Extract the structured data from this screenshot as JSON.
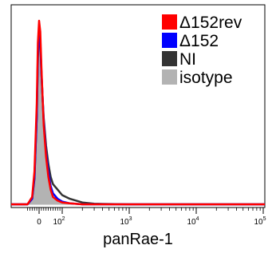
{
  "chart_data": {
    "type": "area",
    "xlabel": "panRae-1",
    "ylabel": "",
    "x_scale": "biexponential",
    "xlim": [
      -60,
      300000
    ],
    "ylim": [
      0,
      100
    ],
    "x_ticks": [
      {
        "value": 0,
        "base": "0",
        "exp": ""
      },
      {
        "value": 100,
        "base": "10",
        "exp": "2"
      },
      {
        "value": 1000,
        "base": "10",
        "exp": "3"
      },
      {
        "value": 10000,
        "base": "10",
        "exp": "4"
      },
      {
        "value": 100000,
        "base": "10",
        "exp": "5"
      }
    ],
    "legend": {
      "position": "top-right",
      "entries": [
        {
          "label": "Δ152rev",
          "color": "#ff0000"
        },
        {
          "label": "Δ152",
          "color": "#0000ff"
        },
        {
          "label": "NI",
          "color": "#333333"
        },
        {
          "label": "isotype",
          "color": "#b3b3b3"
        }
      ]
    },
    "series": [
      {
        "name": "isotype",
        "style": "filled",
        "color": "#b3b3b3",
        "x": [
          -50,
          -30,
          -20,
          -10,
          -5,
          0,
          5,
          10,
          15,
          20,
          30,
          40,
          50,
          60,
          80,
          100,
          130,
          200
        ],
        "y": [
          0,
          3,
          15,
          50,
          85,
          97,
          90,
          70,
          55,
          42,
          25,
          15,
          8,
          4,
          2,
          1,
          0.5,
          0
        ]
      },
      {
        "name": "NI",
        "style": "line",
        "color": "#333333",
        "x": [
          -50,
          -30,
          -20,
          -10,
          -5,
          0,
          5,
          10,
          15,
          20,
          30,
          40,
          50,
          60,
          80,
          100,
          130,
          200,
          300,
          1000
        ],
        "y": [
          0,
          3,
          14,
          48,
          80,
          93,
          88,
          72,
          58,
          47,
          32,
          22,
          15,
          11,
          8,
          5,
          3,
          1,
          0.3,
          0
        ]
      },
      {
        "name": "Δ152",
        "style": "line",
        "color": "#0000ff",
        "x": [
          -50,
          -30,
          -20,
          -10,
          -5,
          0,
          5,
          10,
          15,
          20,
          30,
          40,
          50,
          60,
          80,
          100,
          130,
          200
        ],
        "y": [
          0,
          3,
          15,
          48,
          82,
          93,
          89,
          72,
          58,
          45,
          28,
          18,
          10,
          6,
          3,
          1.5,
          0.5,
          0
        ]
      },
      {
        "name": "Δ152rev",
        "style": "line",
        "color": "#ff0000",
        "x": [
          -50,
          -30,
          -20,
          -10,
          -5,
          0,
          5,
          10,
          15,
          20,
          30,
          40,
          50,
          60,
          80,
          100,
          130,
          200
        ],
        "y": [
          0,
          4,
          18,
          55,
          88,
          100,
          94,
          75,
          58,
          43,
          26,
          15,
          8,
          4,
          2,
          1,
          0.5,
          0
        ]
      }
    ]
  }
}
